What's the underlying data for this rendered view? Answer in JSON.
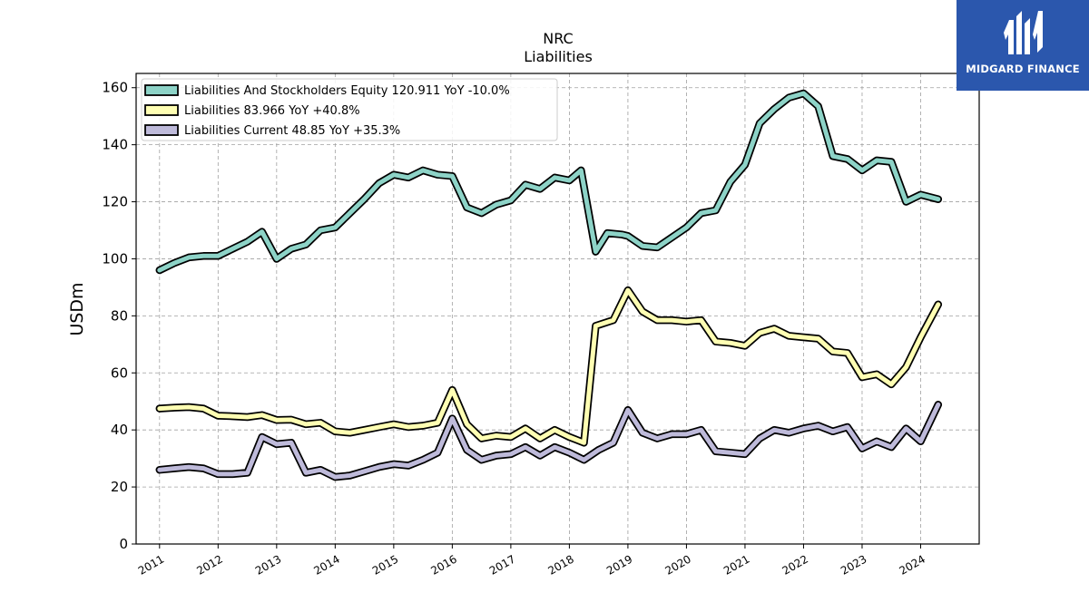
{
  "logo": {
    "text": "MIDGARD FINANCE",
    "color": "#2b57ad",
    "icon": "midgard-m-logo-icon"
  },
  "chart_data": {
    "type": "line",
    "title": "NRC",
    "subtitle": "Liabilities",
    "ylabel": "USDm",
    "ylim": [
      0,
      165
    ],
    "xlim": [
      2010.6,
      2025.0
    ],
    "yticks": [
      0,
      20,
      40,
      60,
      80,
      100,
      120,
      140,
      160
    ],
    "xticks": [
      {
        "value": 2011,
        "label": "2011"
      },
      {
        "value": 2012,
        "label": "2012"
      },
      {
        "value": 2013,
        "label": "2013"
      },
      {
        "value": 2014,
        "label": "2014"
      },
      {
        "value": 2015,
        "label": "2015"
      },
      {
        "value": 2016,
        "label": "2016"
      },
      {
        "value": 2017,
        "label": "2017"
      },
      {
        "value": 2018,
        "label": "2018"
      },
      {
        "value": 2019,
        "label": "2019"
      },
      {
        "value": 2020,
        "label": "2020"
      },
      {
        "value": 2021,
        "label": "2021"
      },
      {
        "value": 2022,
        "label": "2022"
      },
      {
        "value": 2023,
        "label": "2023"
      },
      {
        "value": 2024,
        "label": "2024"
      }
    ],
    "grid": true,
    "legend_position": "top-left",
    "series": [
      {
        "name": "Liabilities And Stockholders Equity  120.911 YoY -10.0%",
        "color": "#8dd3c7",
        "points": [
          [
            2011.0,
            96
          ],
          [
            2011.25,
            98.5
          ],
          [
            2011.5,
            100.5
          ],
          [
            2011.75,
            101
          ],
          [
            2012.0,
            101
          ],
          [
            2012.25,
            103.5
          ],
          [
            2012.5,
            106
          ],
          [
            2012.75,
            109.5
          ],
          [
            2013.0,
            100
          ],
          [
            2013.25,
            103.5
          ],
          [
            2013.5,
            105
          ],
          [
            2013.75,
            110
          ],
          [
            2014.0,
            111
          ],
          [
            2014.25,
            116
          ],
          [
            2014.5,
            121
          ],
          [
            2014.75,
            126.5
          ],
          [
            2015.0,
            129.5
          ],
          [
            2015.25,
            128.5
          ],
          [
            2015.5,
            131
          ],
          [
            2015.75,
            129.5
          ],
          [
            2016.0,
            129
          ],
          [
            2016.25,
            118
          ],
          [
            2016.5,
            116
          ],
          [
            2016.75,
            119
          ],
          [
            2017.0,
            120.5
          ],
          [
            2017.25,
            126
          ],
          [
            2017.5,
            124.5
          ],
          [
            2017.75,
            128.5
          ],
          [
            2018.0,
            127.5
          ],
          [
            2018.2,
            131
          ],
          [
            2018.45,
            102.5
          ],
          [
            2018.65,
            109
          ],
          [
            2018.9,
            108.5
          ],
          [
            2019.0,
            108
          ],
          [
            2019.25,
            104.5
          ],
          [
            2019.5,
            104
          ],
          [
            2019.75,
            107.5
          ],
          [
            2020.0,
            111
          ],
          [
            2020.25,
            116
          ],
          [
            2020.5,
            117
          ],
          [
            2020.75,
            127
          ],
          [
            2021.0,
            133
          ],
          [
            2021.25,
            147.5
          ],
          [
            2021.5,
            152.5
          ],
          [
            2021.75,
            156.5
          ],
          [
            2022.0,
            158
          ],
          [
            2022.25,
            153.5
          ],
          [
            2022.5,
            136
          ],
          [
            2022.75,
            135
          ],
          [
            2023.0,
            131
          ],
          [
            2023.25,
            134.5
          ],
          [
            2023.5,
            134
          ],
          [
            2023.75,
            120
          ],
          [
            2024.0,
            122.5
          ],
          [
            2024.3,
            120.9
          ]
        ]
      },
      {
        "name": "Liabilities  83.966 YoY +40.8%",
        "color": "#ffffb3",
        "points": [
          [
            2011.0,
            47.5
          ],
          [
            2011.25,
            47.8
          ],
          [
            2011.5,
            48
          ],
          [
            2011.75,
            47.5
          ],
          [
            2012.0,
            45
          ],
          [
            2012.25,
            44.8
          ],
          [
            2012.5,
            44.5
          ],
          [
            2012.75,
            45.2
          ],
          [
            2013.0,
            43.5
          ],
          [
            2013.25,
            43.6
          ],
          [
            2013.5,
            42
          ],
          [
            2013.75,
            42.5
          ],
          [
            2014.0,
            39.5
          ],
          [
            2014.25,
            39
          ],
          [
            2014.5,
            40
          ],
          [
            2014.75,
            41
          ],
          [
            2015.0,
            42
          ],
          [
            2015.25,
            41
          ],
          [
            2015.5,
            41.5
          ],
          [
            2015.75,
            42.5
          ],
          [
            2016.0,
            54
          ],
          [
            2016.25,
            42
          ],
          [
            2016.5,
            37
          ],
          [
            2016.75,
            38
          ],
          [
            2017.0,
            37.5
          ],
          [
            2017.25,
            40.5
          ],
          [
            2017.5,
            37
          ],
          [
            2017.75,
            40
          ],
          [
            2018.0,
            37.5
          ],
          [
            2018.25,
            35.5
          ],
          [
            2018.45,
            76.5
          ],
          [
            2018.75,
            78.5
          ],
          [
            2019.0,
            89
          ],
          [
            2019.25,
            81.5
          ],
          [
            2019.5,
            78.5
          ],
          [
            2019.75,
            78.5
          ],
          [
            2020.0,
            78
          ],
          [
            2020.25,
            78.5
          ],
          [
            2020.5,
            71
          ],
          [
            2020.75,
            70.5
          ],
          [
            2021.0,
            69.5
          ],
          [
            2021.25,
            74
          ],
          [
            2021.5,
            75.5
          ],
          [
            2021.75,
            73
          ],
          [
            2022.0,
            72.5
          ],
          [
            2022.25,
            72
          ],
          [
            2022.5,
            67.5
          ],
          [
            2022.75,
            67
          ],
          [
            2023.0,
            58.5
          ],
          [
            2023.25,
            59.5
          ],
          [
            2023.5,
            56
          ],
          [
            2023.75,
            62
          ],
          [
            2024.0,
            72.5
          ],
          [
            2024.3,
            84
          ]
        ]
      },
      {
        "name": "Liabilities Current  48.85 YoY +35.3%",
        "color": "#bebada",
        "points": [
          [
            2011.0,
            26
          ],
          [
            2011.25,
            26.5
          ],
          [
            2011.5,
            27
          ],
          [
            2011.75,
            26.5
          ],
          [
            2012.0,
            24.5
          ],
          [
            2012.25,
            24.5
          ],
          [
            2012.5,
            25
          ],
          [
            2012.75,
            37.5
          ],
          [
            2013.0,
            35
          ],
          [
            2013.25,
            35.5
          ],
          [
            2013.5,
            25
          ],
          [
            2013.75,
            26
          ],
          [
            2014.0,
            23.5
          ],
          [
            2014.25,
            24
          ],
          [
            2014.5,
            25.5
          ],
          [
            2014.75,
            27
          ],
          [
            2015.0,
            28
          ],
          [
            2015.25,
            27.5
          ],
          [
            2015.5,
            29.5
          ],
          [
            2015.75,
            32
          ],
          [
            2016.0,
            44
          ],
          [
            2016.25,
            33
          ],
          [
            2016.5,
            29.5
          ],
          [
            2016.75,
            31
          ],
          [
            2017.0,
            31.5
          ],
          [
            2017.25,
            34
          ],
          [
            2017.5,
            31
          ],
          [
            2017.75,
            34
          ],
          [
            2018.0,
            32
          ],
          [
            2018.25,
            29.5
          ],
          [
            2018.5,
            33
          ],
          [
            2018.75,
            35.5
          ],
          [
            2019.0,
            47
          ],
          [
            2019.25,
            39
          ],
          [
            2019.5,
            37
          ],
          [
            2019.75,
            38.5
          ],
          [
            2020.0,
            38.5
          ],
          [
            2020.25,
            40
          ],
          [
            2020.5,
            32.5
          ],
          [
            2020.75,
            32
          ],
          [
            2021.0,
            31.5
          ],
          [
            2021.25,
            37
          ],
          [
            2021.5,
            40
          ],
          [
            2021.75,
            39
          ],
          [
            2022.0,
            40.5
          ],
          [
            2022.25,
            41.5
          ],
          [
            2022.5,
            39.5
          ],
          [
            2022.75,
            41
          ],
          [
            2023.0,
            33.5
          ],
          [
            2023.25,
            36
          ],
          [
            2023.5,
            34
          ],
          [
            2023.75,
            40.5
          ],
          [
            2024.0,
            36
          ],
          [
            2024.3,
            48.85
          ]
        ]
      }
    ]
  }
}
